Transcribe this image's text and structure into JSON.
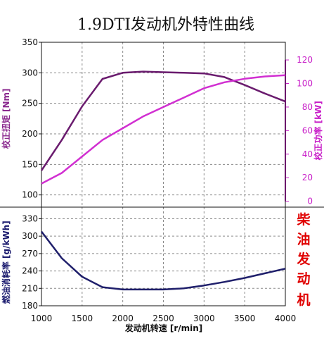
{
  "chart_data": {
    "type": "line",
    "title": "1.9DTI发动机外特性曲线",
    "xlabel": "发动机转速 [r/min]",
    "x_ticks": [
      1000,
      1500,
      2000,
      2500,
      3000,
      3500,
      4000
    ],
    "xlim": [
      1000,
      4000
    ],
    "panels": [
      {
        "name": "torque-power",
        "axes": [
          {
            "id": "torque",
            "side": "left",
            "label": "校正扭矩 [Nm]",
            "ylim": [
              80,
              350
            ],
            "ticks": [
              100,
              150,
              200,
              250,
              300,
              350
            ],
            "color": "#8b2a8f"
          },
          {
            "id": "power",
            "side": "right",
            "label": "校正功率 [kW]",
            "ylim": [
              -5,
              135
            ],
            "ticks": [
              0,
              20,
              40,
              60,
              80,
              100,
              120
            ],
            "color": "#c81ec8"
          }
        ],
        "series": [
          {
            "axis": "torque",
            "color": "#6a1b6e",
            "x": [
              1000,
              1250,
              1500,
              1750,
              2000,
              2250,
              2500,
              2750,
              3000,
              3250,
              3500,
              3750,
              4000
            ],
            "y": [
              140,
              190,
              245,
              290,
              300,
              302,
              301,
              300,
              299,
              293,
              280,
              266,
              253
            ]
          },
          {
            "axis": "power",
            "color": "#d12fd1",
            "x": [
              1000,
              1250,
              1500,
              1750,
              2000,
              2250,
              2500,
              2750,
              3000,
              3250,
              3500,
              3750,
              4000
            ],
            "y": [
              15,
              24,
              38,
              52,
              62,
              72,
              80,
              88,
              96,
              101,
              104,
              106,
              107
            ]
          }
        ]
      },
      {
        "name": "fuel-consumption",
        "axes": [
          {
            "id": "bsfc",
            "side": "left",
            "label": "燃油消耗率 [g/kWh]",
            "ylim": [
              180,
              350
            ],
            "ticks": [
              180,
              210,
              240,
              270,
              300,
              330
            ],
            "color": "#1a1a6e"
          }
        ],
        "series": [
          {
            "axis": "bsfc",
            "color": "#1f1f6b",
            "x": [
              1000,
              1250,
              1500,
              1750,
              2000,
              2250,
              2500,
              2750,
              3000,
              3250,
              3500,
              3750,
              4000
            ],
            "y": [
              308,
              262,
              230,
              212,
              208,
              208,
              208,
              210,
              215,
              221,
              228,
              236,
              244
            ]
          }
        ]
      }
    ],
    "grid": true
  },
  "side_text": [
    "柴",
    "油",
    "发",
    "动",
    "机"
  ]
}
